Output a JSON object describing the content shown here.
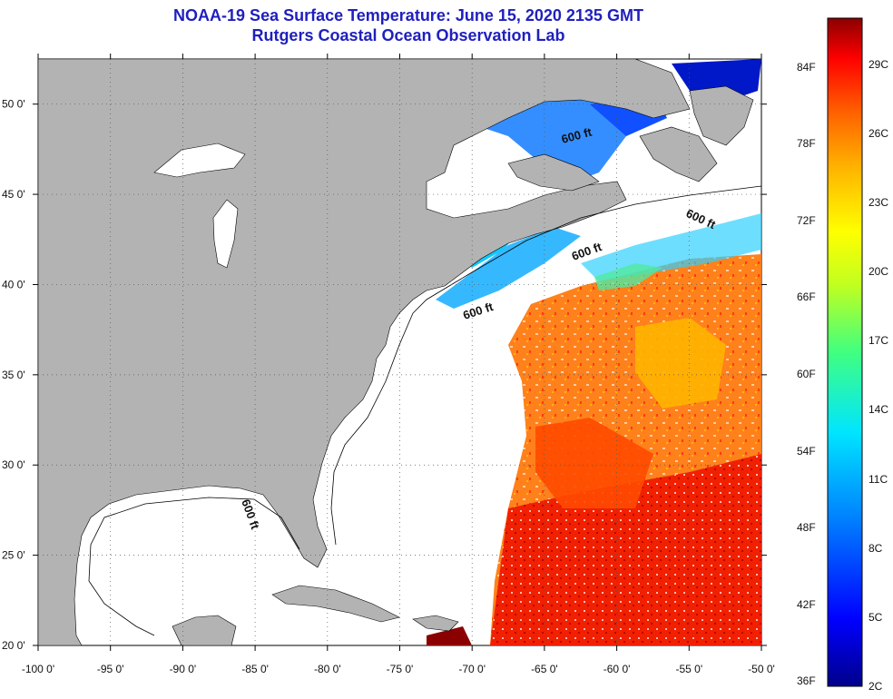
{
  "header": {
    "title": "NOAA-19 Sea Surface Temperature:  June 15, 2020 2135 GMT",
    "subtitle": "Rutgers Coastal Ocean Observation Lab"
  },
  "map": {
    "lon_range": [
      -100,
      -50
    ],
    "lat_range": [
      20,
      52.5
    ],
    "lon_ticks": [
      "-100 0'",
      "-95 0'",
      "-90 0'",
      "-85 0'",
      "-80 0'",
      "-75 0'",
      "-70 0'",
      "-65 0'",
      "-60 0'",
      "-55 0'",
      "-50 0'"
    ],
    "lat_ticks": [
      "50 0'",
      "45 0'",
      "40 0'",
      "35 0'",
      "30 0'",
      "25 0'",
      "20 0'"
    ],
    "contour_label": "600 ft",
    "contour_labels": [
      "600 ft",
      "600 ft",
      "600 ft",
      "600 ft",
      "600 ft"
    ],
    "land_color": "#b3b3b3",
    "water_color": "#ffffff",
    "grid": "dotted"
  },
  "colorbar": {
    "min_c": 2,
    "max_c": 31,
    "f_labels": [
      "84F",
      "78F",
      "72F",
      "66F",
      "60F",
      "54F",
      "48F",
      "42F",
      "36F"
    ],
    "c_labels": [
      "29C",
      "26C",
      "23C",
      "20C",
      "17C",
      "14C",
      "11C",
      "8C",
      "5C",
      "2C"
    ],
    "colors": [
      "#00008b",
      "#0000ff",
      "#0080ff",
      "#00e5ff",
      "#40ff80",
      "#c0ff20",
      "#ffff00",
      "#ffb000",
      "#ff6000",
      "#ff0000",
      "#8b0000"
    ]
  }
}
